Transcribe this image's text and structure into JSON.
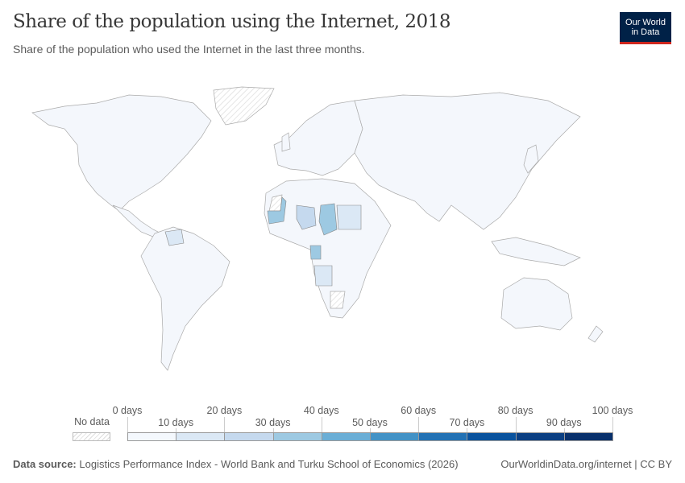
{
  "header": {
    "title": "Share of the population using the Internet, 2018",
    "subtitle": "Share of the population who used the Internet in the last three months.",
    "logo": "Our World in Data"
  },
  "legend": {
    "no_data_label": "No data",
    "upper_labels": [
      "0 days",
      "20 days",
      "40 days",
      "60 days",
      "80 days",
      "100 days"
    ],
    "lower_labels": [
      "10 days",
      "30 days",
      "50 days",
      "70 days",
      "90 days"
    ],
    "colors": [
      "#f4f8fd",
      "#dbe8f5",
      "#c5d9ee",
      "#9dc9e2",
      "#6aaed6",
      "#4292c6",
      "#2271b4",
      "#0a539e",
      "#0b3f82",
      "#08306b"
    ],
    "no_data_color": "hatched"
  },
  "footer": {
    "source_label": "Data source:",
    "source": "Logistics Performance Index - World Bank and Turku School of Economics (2026)",
    "url": "OurWorldinData.org/internet | CC BY"
  }
}
